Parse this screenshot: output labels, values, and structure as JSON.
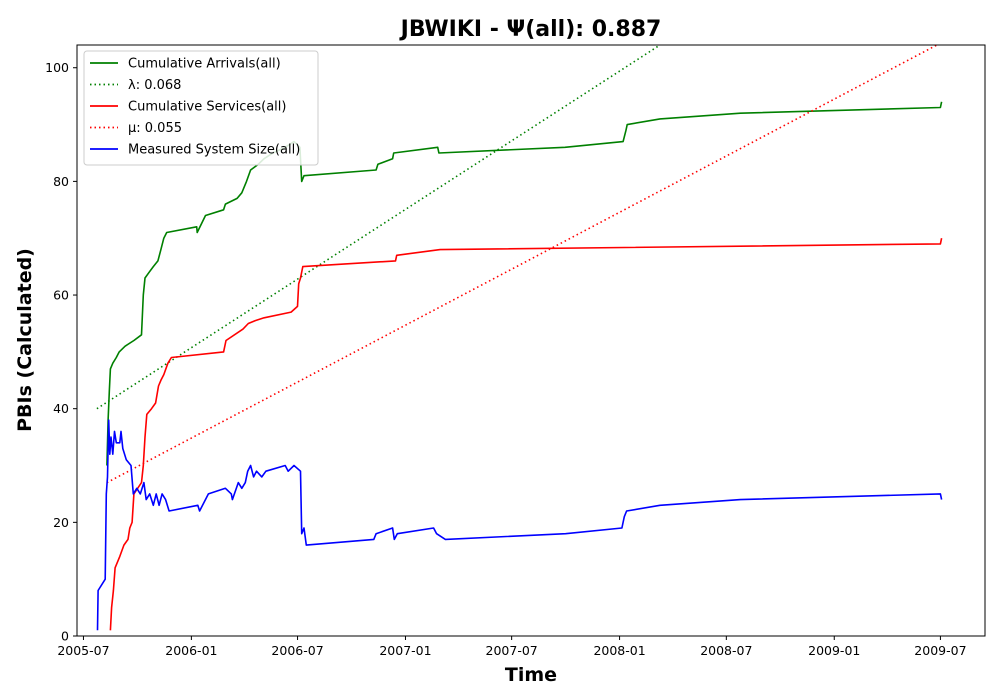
{
  "chart_data": {
    "type": "line",
    "title": "JBWIKI -  Ψ(all): 0.887",
    "xlabel": "Time",
    "ylabel": "PBIs (Calculated)",
    "xlim": [
      "2005-06-20",
      "2009-09-15"
    ],
    "ylim": [
      0,
      104
    ],
    "x_ticks": [
      "2005-07",
      "2006-01",
      "2006-07",
      "2007-01",
      "2007-07",
      "2008-01",
      "2008-07",
      "2009-01",
      "2009-07"
    ],
    "y_ticks": [
      0,
      20,
      40,
      60,
      80,
      100
    ],
    "grid": false,
    "legend_position": "upper-left",
    "series": [
      {
        "name": "Cumulative Arrivals(all)",
        "color": "#008000",
        "style": "solid",
        "points": [
          [
            "2005-08-10",
            30
          ],
          [
            "2005-08-12",
            38
          ],
          [
            "2005-08-14",
            43
          ],
          [
            "2005-08-16",
            47
          ],
          [
            "2005-08-20",
            48
          ],
          [
            "2005-08-26",
            49
          ],
          [
            "2005-08-31",
            50
          ],
          [
            "2005-09-10",
            51
          ],
          [
            "2005-09-25",
            52
          ],
          [
            "2005-10-08",
            53
          ],
          [
            "2005-10-11",
            60
          ],
          [
            "2005-10-14",
            63
          ],
          [
            "2005-10-21",
            64
          ],
          [
            "2005-10-28",
            65
          ],
          [
            "2005-11-05",
            66
          ],
          [
            "2005-11-10",
            68
          ],
          [
            "2005-11-15",
            70
          ],
          [
            "2005-11-20",
            71
          ],
          [
            "2006-01-10",
            72
          ],
          [
            "2006-01-11",
            71
          ],
          [
            "2006-01-25",
            74
          ],
          [
            "2006-02-25",
            75
          ],
          [
            "2006-02-28",
            76
          ],
          [
            "2006-03-20",
            77
          ],
          [
            "2006-03-28",
            78
          ],
          [
            "2006-04-05",
            80
          ],
          [
            "2006-04-12",
            82
          ],
          [
            "2006-04-25",
            83
          ],
          [
            "2006-05-05",
            84
          ],
          [
            "2006-05-20",
            85
          ],
          [
            "2006-06-10",
            86
          ],
          [
            "2006-06-25",
            87
          ],
          [
            "2006-07-05",
            86
          ],
          [
            "2006-07-08",
            80
          ],
          [
            "2006-07-12",
            81
          ],
          [
            "2006-11-12",
            82
          ],
          [
            "2006-11-15",
            83
          ],
          [
            "2006-12-10",
            84
          ],
          [
            "2006-12-12",
            85
          ],
          [
            "2007-02-25",
            86
          ],
          [
            "2007-02-27",
            85
          ],
          [
            "2007-09-30",
            86
          ],
          [
            "2008-01-07",
            87
          ],
          [
            "2008-01-12",
            89
          ],
          [
            "2008-01-14",
            90
          ],
          [
            "2008-03-10",
            91
          ],
          [
            "2008-07-25",
            92
          ],
          [
            "2009-07-01",
            93
          ],
          [
            "2009-07-03",
            94
          ]
        ]
      },
      {
        "name": "λ: 0.068",
        "color": "#008000",
        "style": "dotted",
        "points": [
          [
            "2005-07-24",
            40
          ],
          [
            "2008-03-10",
            104
          ]
        ]
      },
      {
        "name": "Cumulative Services(all)",
        "color": "#ff0000",
        "style": "solid",
        "points": [
          [
            "2005-08-16",
            1
          ],
          [
            "2005-08-18",
            5
          ],
          [
            "2005-08-21",
            8
          ],
          [
            "2005-08-24",
            12
          ],
          [
            "2005-09-01",
            14
          ],
          [
            "2005-09-08",
            16
          ],
          [
            "2005-09-15",
            17
          ],
          [
            "2005-09-18",
            19
          ],
          [
            "2005-09-22",
            20
          ],
          [
            "2005-09-25",
            25
          ],
          [
            "2005-10-08",
            27
          ],
          [
            "2005-10-11",
            30
          ],
          [
            "2005-10-14",
            35
          ],
          [
            "2005-10-17",
            39
          ],
          [
            "2005-10-25",
            40
          ],
          [
            "2005-11-01",
            41
          ],
          [
            "2005-11-06",
            44
          ],
          [
            "2005-11-10",
            45
          ],
          [
            "2005-11-15",
            46
          ],
          [
            "2005-11-22",
            48
          ],
          [
            "2005-11-28",
            49
          ],
          [
            "2006-02-25",
            50
          ],
          [
            "2006-03-01",
            52
          ],
          [
            "2006-03-30",
            54
          ],
          [
            "2006-04-08",
            55
          ],
          [
            "2006-04-20",
            55.5
          ],
          [
            "2006-05-05",
            56
          ],
          [
            "2006-06-20",
            57
          ],
          [
            "2006-07-01",
            58
          ],
          [
            "2006-07-03",
            62
          ],
          [
            "2006-07-06",
            63
          ],
          [
            "2006-07-10",
            65
          ],
          [
            "2006-12-15",
            66
          ],
          [
            "2006-12-17",
            67
          ],
          [
            "2007-03-01",
            68
          ],
          [
            "2009-07-01",
            69
          ],
          [
            "2009-07-03",
            70
          ]
        ]
      },
      {
        "name": "μ: 0.055",
        "color": "#ff0000",
        "style": "dotted",
        "points": [
          [
            "2005-08-10",
            27
          ],
          [
            "2009-06-25",
            104
          ]
        ]
      },
      {
        "name": "Measured System Size(all)",
        "color": "#0000ff",
        "style": "solid",
        "points": [
          [
            "2005-07-25",
            1
          ],
          [
            "2005-07-26",
            8
          ],
          [
            "2005-08-07",
            10
          ],
          [
            "2005-08-09",
            25
          ],
          [
            "2005-08-11",
            28
          ],
          [
            "2005-08-13",
            38
          ],
          [
            "2005-08-15",
            32
          ],
          [
            "2005-08-17",
            35
          ],
          [
            "2005-08-20",
            32
          ],
          [
            "2005-08-23",
            36
          ],
          [
            "2005-08-26",
            34
          ],
          [
            "2005-09-01",
            34
          ],
          [
            "2005-09-03",
            36
          ],
          [
            "2005-09-06",
            33
          ],
          [
            "2005-09-12",
            31
          ],
          [
            "2005-09-20",
            30
          ],
          [
            "2005-09-24",
            25
          ],
          [
            "2005-09-30",
            26
          ],
          [
            "2005-10-06",
            25
          ],
          [
            "2005-10-12",
            27
          ],
          [
            "2005-10-16",
            24
          ],
          [
            "2005-10-22",
            25
          ],
          [
            "2005-10-28",
            23
          ],
          [
            "2005-11-02",
            25
          ],
          [
            "2005-11-07",
            23
          ],
          [
            "2005-11-12",
            25
          ],
          [
            "2005-11-18",
            24
          ],
          [
            "2005-11-24",
            22
          ],
          [
            "2006-01-12",
            23
          ],
          [
            "2006-01-15",
            22
          ],
          [
            "2006-01-30",
            25
          ],
          [
            "2006-02-28",
            26
          ],
          [
            "2006-03-10",
            25
          ],
          [
            "2006-03-12",
            24
          ],
          [
            "2006-03-22",
            27
          ],
          [
            "2006-03-28",
            26
          ],
          [
            "2006-04-03",
            27
          ],
          [
            "2006-04-07",
            29
          ],
          [
            "2006-04-12",
            30
          ],
          [
            "2006-04-17",
            28
          ],
          [
            "2006-04-22",
            29
          ],
          [
            "2006-05-01",
            28
          ],
          [
            "2006-05-08",
            29
          ],
          [
            "2006-06-10",
            30
          ],
          [
            "2006-06-15",
            29
          ],
          [
            "2006-06-25",
            30
          ],
          [
            "2006-07-06",
            29
          ],
          [
            "2006-07-08",
            18
          ],
          [
            "2006-07-12",
            19
          ],
          [
            "2006-07-16",
            16
          ],
          [
            "2006-11-08",
            17
          ],
          [
            "2006-11-12",
            18
          ],
          [
            "2006-12-10",
            19
          ],
          [
            "2006-12-13",
            17
          ],
          [
            "2006-12-18",
            18
          ],
          [
            "2007-02-18",
            19
          ],
          [
            "2007-02-23",
            18
          ],
          [
            "2007-03-10",
            17
          ],
          [
            "2007-10-01",
            18
          ],
          [
            "2008-01-05",
            19
          ],
          [
            "2008-01-09",
            21
          ],
          [
            "2008-01-13",
            22
          ],
          [
            "2008-03-10",
            23
          ],
          [
            "2008-07-25",
            24
          ],
          [
            "2009-07-01",
            25
          ],
          [
            "2009-07-03",
            24
          ]
        ]
      }
    ]
  }
}
